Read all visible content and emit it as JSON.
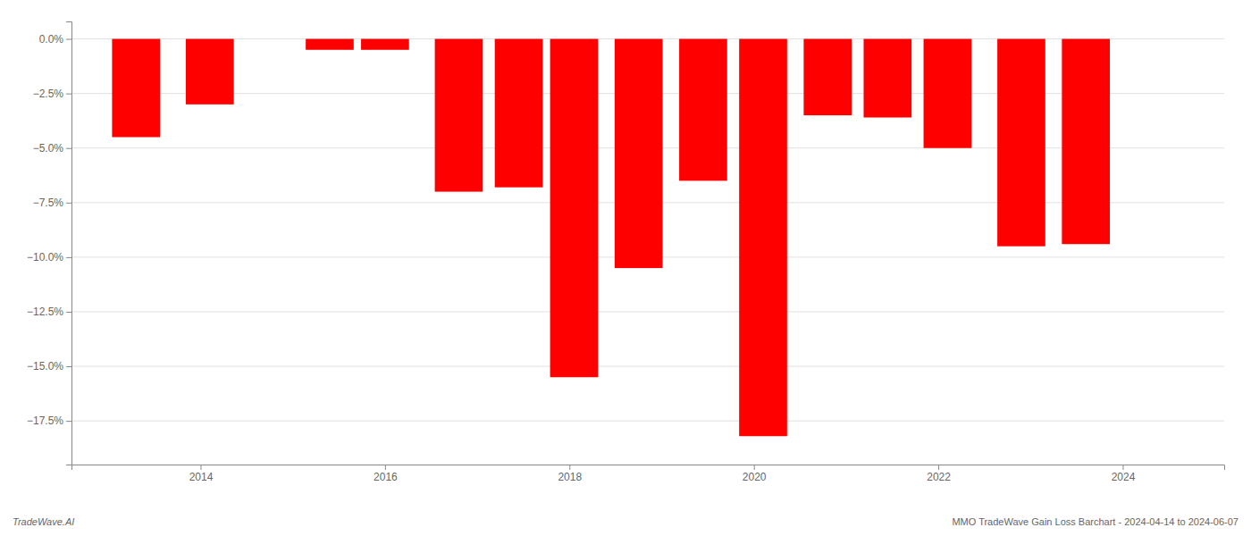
{
  "chart_data": {
    "type": "bar",
    "x": [
      2013.3,
      2014.1,
      2015.4,
      2016.0,
      2016.8,
      2017.45,
      2018.05,
      2018.75,
      2019.45,
      2020.1,
      2020.8,
      2021.45,
      2022.1,
      2022.9,
      2023.6
    ],
    "values": [
      -4.5,
      -3.0,
      -0.5,
      -0.5,
      -7.0,
      -6.8,
      -15.5,
      -10.5,
      -6.5,
      -18.2,
      -3.5,
      -3.6,
      -5.0,
      -9.5,
      -9.4
    ],
    "color": "#ff0000",
    "xlim": [
      2012.6,
      2025.1
    ],
    "xticks": [
      2014,
      2016,
      2018,
      2020,
      2022,
      2024
    ],
    "ylim": [
      -19.5,
      0.8
    ],
    "yticks": [
      {
        "value": 0.0,
        "label": "0.0%"
      },
      {
        "value": -2.5,
        "label": "−2.5%"
      },
      {
        "value": -5.0,
        "label": "−5.0%"
      },
      {
        "value": -7.5,
        "label": "−7.5%"
      },
      {
        "value": -10.0,
        "label": "−10.0%"
      },
      {
        "value": -12.5,
        "label": "−12.5%"
      },
      {
        "value": -15.0,
        "label": "−15.0%"
      },
      {
        "value": -17.5,
        "label": "−17.5%"
      }
    ],
    "grid": true,
    "annotations": [
      "TradeWave.AI",
      "MMO TradeWave Gain Loss Barchart - 2024-04-14 to 2024-06-07"
    ]
  }
}
